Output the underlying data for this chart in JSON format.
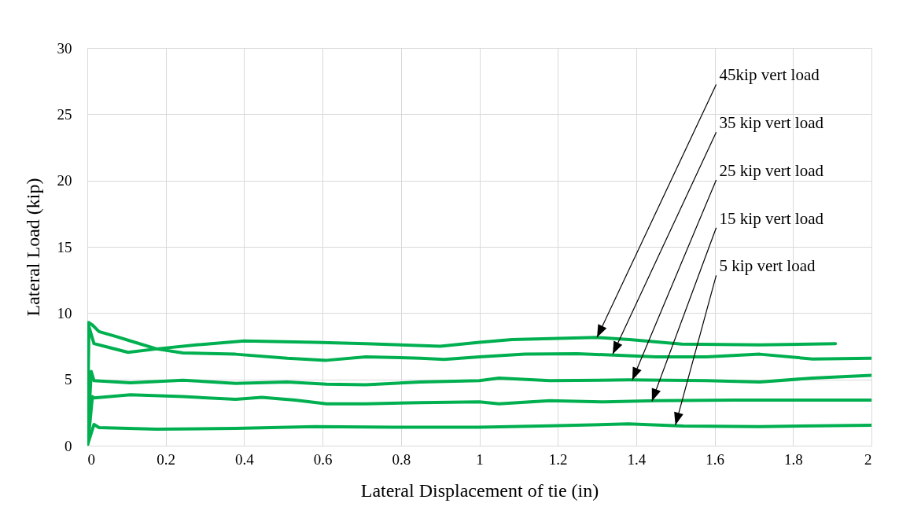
{
  "chart_data": {
    "type": "line",
    "xlabel": "Lateral Displacement of tie (in)",
    "ylabel": "Lateral Load (kip)",
    "xlim": [
      0,
      2
    ],
    "xticks": [
      0,
      0.2,
      0.4,
      0.6,
      0.8,
      1,
      1.2,
      1.4,
      1.6,
      1.8,
      2
    ],
    "ylim": [
      0,
      30
    ],
    "yticks": [
      0,
      5,
      10,
      15,
      20,
      25,
      30
    ],
    "grid": true,
    "marker": "none",
    "series": [
      {
        "color": "#00b050",
        "x": [
          0,
          0.004,
          0.017,
          0.057,
          0.104,
          0.177,
          0.278,
          0.4,
          0.58,
          0.71,
          0.9,
          1.0,
          1.083,
          1.3,
          1.383,
          1.516,
          1.715,
          1.908
        ],
        "values": [
          0,
          9.0,
          7.7,
          7.4,
          7.04,
          7.3,
          7.6,
          7.9,
          7.8,
          7.7,
          7.5,
          7.8,
          8.0,
          8.16,
          8.0,
          7.66,
          7.6,
          7.7
        ]
      },
      {
        "color": "#00b050",
        "x": [
          0,
          0.003,
          0.013,
          0.03,
          0.077,
          0.11,
          0.177,
          0.244,
          0.378,
          0.51,
          0.61,
          0.71,
          0.85,
          0.91,
          1.0,
          1.116,
          1.25,
          1.45,
          1.58,
          1.715,
          1.85,
          2.0
        ],
        "values": [
          0,
          9.3,
          9.1,
          8.6,
          8.2,
          7.9,
          7.3,
          7.0,
          6.9,
          6.6,
          6.44,
          6.7,
          6.6,
          6.5,
          6.7,
          6.9,
          6.94,
          6.7,
          6.7,
          6.9,
          6.54,
          6.6
        ]
      },
      {
        "color": "#00b050",
        "x": [
          0,
          0.01,
          0.017,
          0.11,
          0.244,
          0.378,
          0.51,
          0.61,
          0.71,
          0.85,
          1.0,
          1.05,
          1.18,
          1.38,
          1.58,
          1.715,
          1.85,
          2.0
        ],
        "values": [
          0,
          5.6,
          4.9,
          4.74,
          4.94,
          4.7,
          4.8,
          4.64,
          4.6,
          4.8,
          4.9,
          5.1,
          4.9,
          4.96,
          4.9,
          4.8,
          5.1,
          5.3
        ]
      },
      {
        "color": "#00b050",
        "x": [
          0,
          0.003,
          0.013,
          0.017,
          0.11,
          0.244,
          0.378,
          0.445,
          0.53,
          0.61,
          0.71,
          0.85,
          1.0,
          1.05,
          1.18,
          1.32,
          1.45,
          1.65,
          2.0
        ],
        "values": [
          0,
          0.6,
          3.7,
          3.6,
          3.84,
          3.7,
          3.5,
          3.64,
          3.44,
          3.16,
          3.16,
          3.24,
          3.3,
          3.16,
          3.4,
          3.3,
          3.4,
          3.44,
          3.44
        ]
      },
      {
        "color": "#00b050",
        "x": [
          0,
          0.017,
          0.03,
          0.177,
          0.378,
          0.58,
          0.78,
          1.0,
          1.18,
          1.38,
          1.52,
          1.715,
          2.0
        ],
        "values": [
          0,
          1.6,
          1.36,
          1.24,
          1.3,
          1.44,
          1.4,
          1.4,
          1.5,
          1.64,
          1.48,
          1.44,
          1.54
        ]
      }
    ],
    "annotations": [
      {
        "text": "45kip vert load",
        "x": 1.3,
        "y": 8.16
      },
      {
        "text": "35 kip vert load",
        "x": 1.34,
        "y": 6.9
      },
      {
        "text": "25 kip vert load",
        "x": 1.39,
        "y": 4.95
      },
      {
        "text": "15 kip vert load",
        "x": 1.44,
        "y": 3.35
      },
      {
        "text": "5 kip vert load",
        "x": 1.5,
        "y": 1.55
      }
    ]
  }
}
